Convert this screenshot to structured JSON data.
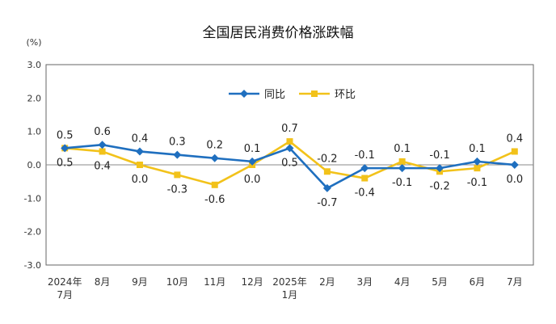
{
  "chart_data": {
    "type": "line",
    "title": "全国居民消费价格涨跌幅",
    "unit": "(%)",
    "ylim": [
      -3.0,
      3.0
    ],
    "yticks": [
      "3.0",
      "2.0",
      "1.0",
      "0.0",
      "-1.0",
      "-2.0",
      "-3.0"
    ],
    "grid": false,
    "legend_position": "top",
    "categories": [
      [
        "2024年",
        "7月"
      ],
      [
        "8月"
      ],
      [
        "9月"
      ],
      [
        "10月"
      ],
      [
        "11月"
      ],
      [
        "12月"
      ],
      [
        "2025年",
        "1月"
      ],
      [
        "2月"
      ],
      [
        "3月"
      ],
      [
        "4月"
      ],
      [
        "5月"
      ],
      [
        "6月"
      ],
      [
        "7月"
      ]
    ],
    "series": [
      {
        "name": "同比",
        "color": "#1f6fbf",
        "marker": "diamond",
        "values": [
          0.5,
          0.6,
          0.4,
          0.3,
          0.2,
          0.1,
          0.5,
          -0.7,
          -0.1,
          -0.1,
          -0.1,
          0.1,
          0.0
        ],
        "labels": [
          "0.5",
          "0.6",
          "0.4",
          "0.3",
          "0.2",
          "0.1",
          "0.5",
          "-0.7",
          "-0.1",
          "-0.1",
          "-0.1",
          "0.1",
          "0.0"
        ]
      },
      {
        "name": "环比",
        "color": "#f2c21a",
        "marker": "square",
        "values": [
          0.5,
          0.4,
          0.0,
          -0.3,
          -0.6,
          0.0,
          0.7,
          -0.2,
          -0.4,
          0.1,
          -0.2,
          -0.1,
          0.4
        ],
        "labels": [
          "0.5",
          "0.4",
          "0.0",
          "-0.3",
          "-0.6",
          "0.0",
          "0.7",
          "-0.2",
          "-0.4",
          "0.1",
          "-0.2",
          "-0.1",
          "0.4"
        ]
      }
    ]
  }
}
